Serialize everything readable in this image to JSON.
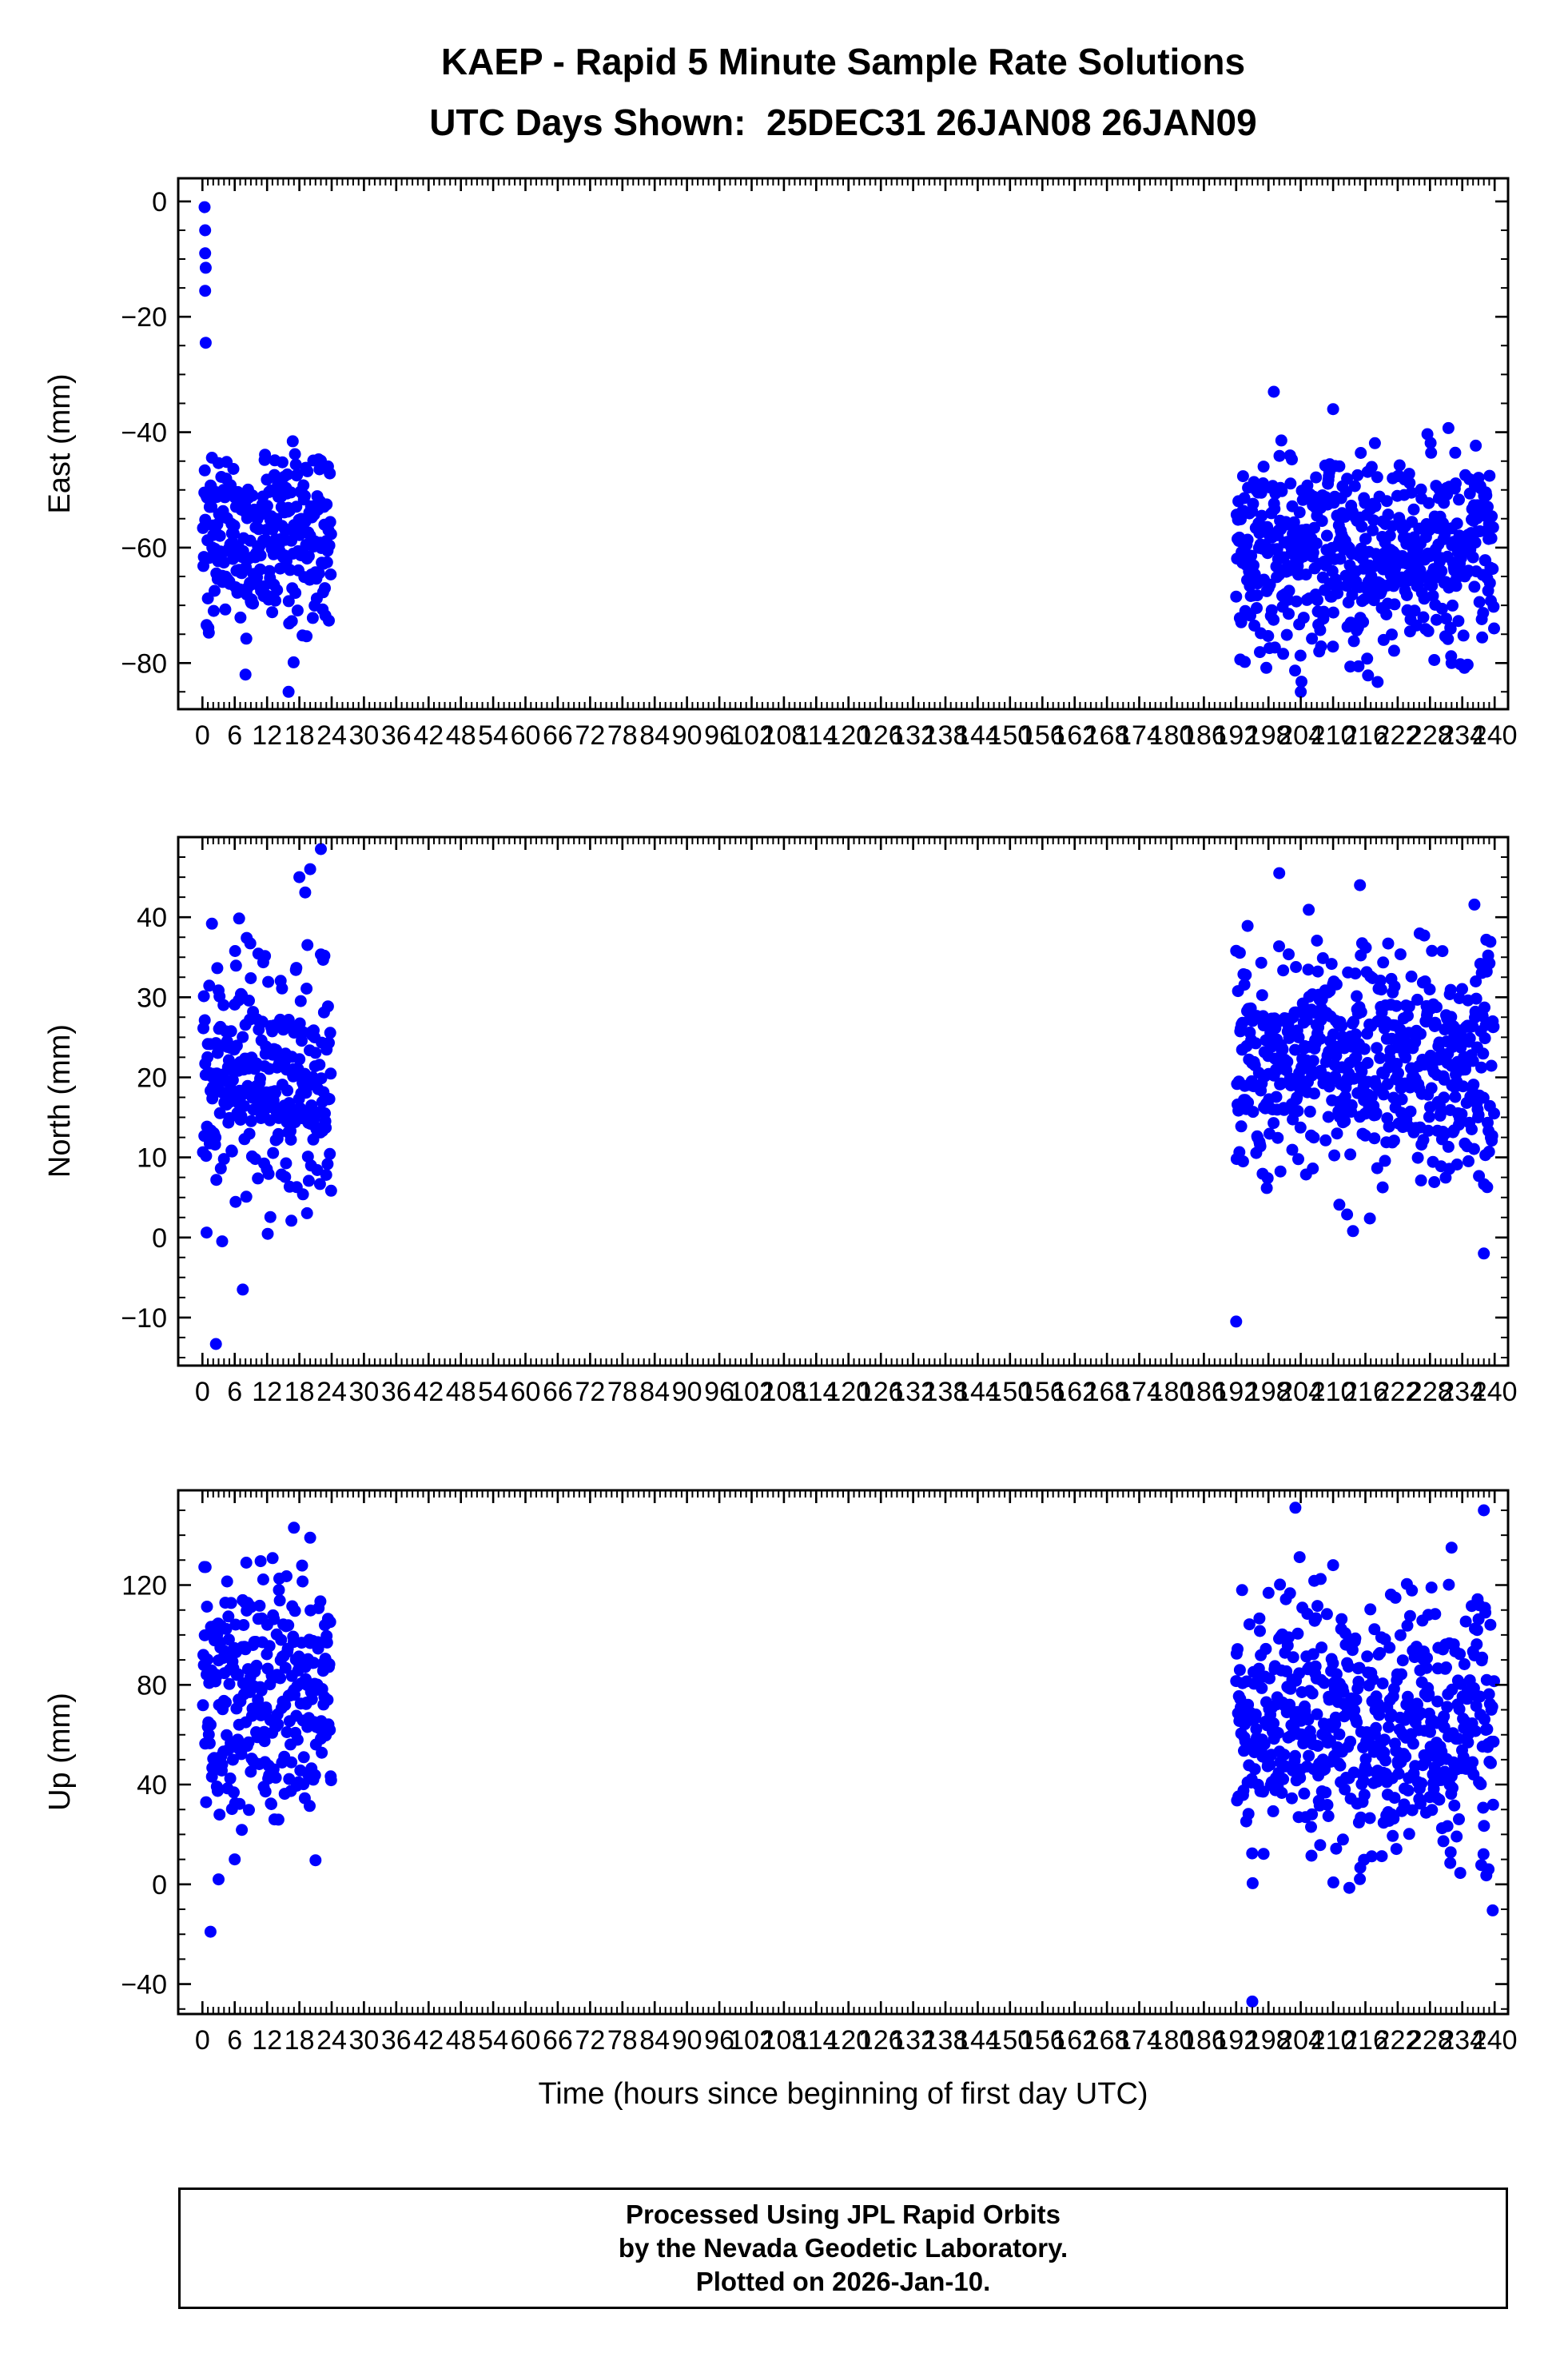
{
  "title": {
    "line1": "KAEP - Rapid 5 Minute Sample Rate Solutions",
    "line2": "UTC Days Shown:  25DEC31 26JAN08 26JAN09"
  },
  "x_axis": {
    "label": "Time (hours since beginning of first day UTC)",
    "min": -4.5,
    "max": 242.5,
    "tick_start": 0,
    "tick_end": 240,
    "major_step": 6,
    "minor_step": 1
  },
  "style": {
    "point_color": "#0000ff",
    "point_radius": 7.5,
    "axis_color": "#000000"
  },
  "chart_data": [
    {
      "type": "scatter",
      "ylabel": "East (mm)",
      "ylim": [
        -88,
        4
      ],
      "yticks": [
        0,
        -20,
        -40,
        -60,
        -80
      ],
      "ytick_minor_step": 5,
      "clusters": [
        {
          "x_start": 0.1,
          "x_end": 23.9,
          "count": 288,
          "y_mean": -58,
          "y_std": 7.5,
          "y_min": -80,
          "y_max": -41,
          "seed": 101
        },
        {
          "x_start": 192.0,
          "x_end": 239.9,
          "count": 566,
          "y_mean": -61,
          "y_std": 9,
          "y_min": -86,
          "y_max": -38,
          "seed": 102
        }
      ],
      "outliers": [
        [
          0.4,
          -1
        ],
        [
          0.5,
          -5
        ],
        [
          0.5,
          -9
        ],
        [
          0.6,
          -11.5
        ],
        [
          0.5,
          -15.5
        ],
        [
          0.6,
          -24.5
        ],
        [
          199,
          -33
        ],
        [
          210,
          -36
        ],
        [
          8,
          -82
        ],
        [
          16,
          -85
        ],
        [
          204,
          -85
        ],
        [
          232,
          -80
        ]
      ]
    },
    {
      "type": "scatter",
      "ylabel": "North (mm)",
      "ylim": [
        -16,
        50
      ],
      "yticks": [
        40,
        30,
        20,
        10,
        0,
        -10
      ],
      "ytick_minor_step": 2.5,
      "clusters": [
        {
          "x_start": 0.1,
          "x_end": 23.9,
          "count": 288,
          "y_mean": 20,
          "y_std": 8,
          "y_min": -4,
          "y_max": 44,
          "seed": 201
        },
        {
          "x_start": 192.0,
          "x_end": 239.9,
          "count": 566,
          "y_mean": 22,
          "y_std": 7,
          "y_min": 0,
          "y_max": 42,
          "seed": 202
        }
      ],
      "outliers": [
        [
          2.5,
          -13.3
        ],
        [
          7.5,
          -6.5
        ],
        [
          22,
          48.5
        ],
        [
          20,
          46
        ],
        [
          18,
          45
        ],
        [
          192,
          -10.5
        ],
        [
          238,
          -2
        ],
        [
          200,
          45.5
        ],
        [
          215,
          44
        ]
      ]
    },
    {
      "type": "scatter",
      "ylabel": "Up (mm)",
      "ylim": [
        -52,
        158
      ],
      "yticks": [
        120,
        80,
        40,
        0,
        -40
      ],
      "ytick_minor_step": 10,
      "clusters": [
        {
          "x_start": 0.1,
          "x_end": 23.9,
          "count": 288,
          "y_mean": 75,
          "y_std": 25,
          "y_min": 5,
          "y_max": 140,
          "seed": 301
        },
        {
          "x_start": 192.0,
          "x_end": 239.9,
          "count": 566,
          "y_mean": 66,
          "y_std": 26,
          "y_min": -25,
          "y_max": 132,
          "seed": 302
        }
      ],
      "outliers": [
        [
          1.5,
          -19
        ],
        [
          3,
          2
        ],
        [
          6,
          10
        ],
        [
          17,
          143
        ],
        [
          20,
          139
        ],
        [
          195,
          -47
        ],
        [
          203,
          151
        ],
        [
          238,
          150
        ],
        [
          232,
          135
        ],
        [
          210,
          128
        ]
      ]
    }
  ],
  "footer": {
    "line1": "Processed Using JPL Rapid Orbits",
    "line2": "by the Nevada Geodetic Laboratory.",
    "line3": "Plotted on 2026-Jan-10."
  }
}
